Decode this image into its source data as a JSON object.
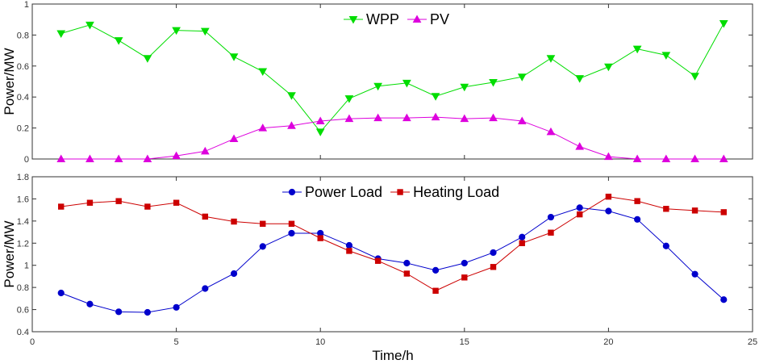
{
  "chart_data": [
    {
      "type": "line",
      "ylabel": "Power/MW",
      "xlabel": "",
      "xlim": [
        0,
        25
      ],
      "ylim": [
        0,
        1
      ],
      "xticks": [
        0,
        5,
        10,
        15,
        20,
        25
      ],
      "yticks": [
        0,
        0.2,
        0.4,
        0.6,
        0.8,
        1
      ],
      "ytick_labels": [
        "0",
        "0.2",
        "0.4",
        "0.6",
        "0.8",
        "1"
      ],
      "legend_position": "top-center",
      "x": [
        1,
        2,
        3,
        4,
        5,
        6,
        7,
        8,
        9,
        10,
        11,
        12,
        13,
        14,
        15,
        16,
        17,
        18,
        19,
        20,
        21,
        22,
        23,
        24
      ],
      "series": [
        {
          "name": "WPP",
          "color": "#00dd00",
          "marker": "triangle-down",
          "values": [
            0.81,
            0.865,
            0.765,
            0.65,
            0.83,
            0.825,
            0.66,
            0.565,
            0.41,
            0.175,
            0.39,
            0.47,
            0.49,
            0.405,
            0.465,
            0.495,
            0.53,
            0.65,
            0.52,
            0.595,
            0.71,
            0.67,
            0.535,
            0.875
          ]
        },
        {
          "name": "PV",
          "color": "#dd00dd",
          "marker": "triangle-up",
          "values": [
            0,
            0,
            0,
            0,
            0.02,
            0.05,
            0.13,
            0.2,
            0.215,
            0.245,
            0.26,
            0.265,
            0.265,
            0.27,
            0.26,
            0.265,
            0.245,
            0.175,
            0.08,
            0.015,
            0,
            0,
            0,
            0
          ]
        }
      ]
    },
    {
      "type": "line",
      "ylabel": "Power/MW",
      "xlabel": "Time/h",
      "xlim": [
        0,
        25
      ],
      "ylim": [
        0.4,
        1.8
      ],
      "xticks": [
        0,
        5,
        10,
        15,
        20,
        25
      ],
      "yticks": [
        0.4,
        0.6,
        0.8,
        1.0,
        1.2,
        1.4,
        1.6,
        1.8
      ],
      "ytick_labels": [
        "0.4",
        "0.6",
        "0.8",
        "1",
        "1.2",
        "1.4",
        "1.6",
        "1.8"
      ],
      "legend_position": "top-center",
      "x": [
        1,
        2,
        3,
        4,
        5,
        6,
        7,
        8,
        9,
        10,
        11,
        12,
        13,
        14,
        15,
        16,
        17,
        18,
        19,
        20,
        21,
        22,
        23,
        24
      ],
      "series": [
        {
          "name": "Power Load",
          "color": "#0000cc",
          "marker": "circle",
          "values": [
            0.75,
            0.65,
            0.58,
            0.575,
            0.62,
            0.79,
            0.925,
            1.17,
            1.29,
            1.29,
            1.18,
            1.06,
            1.02,
            0.955,
            1.02,
            1.115,
            1.255,
            1.435,
            1.52,
            1.49,
            1.415,
            1.175,
            0.92,
            0.69
          ]
        },
        {
          "name": "Heating Load",
          "color": "#cc0000",
          "marker": "square",
          "values": [
            1.53,
            1.565,
            1.58,
            1.53,
            1.565,
            1.44,
            1.395,
            1.375,
            1.375,
            1.245,
            1.13,
            1.04,
            0.925,
            0.77,
            0.89,
            0.985,
            1.2,
            1.295,
            1.46,
            1.62,
            1.58,
            1.51,
            1.495,
            1.48
          ]
        }
      ]
    }
  ]
}
